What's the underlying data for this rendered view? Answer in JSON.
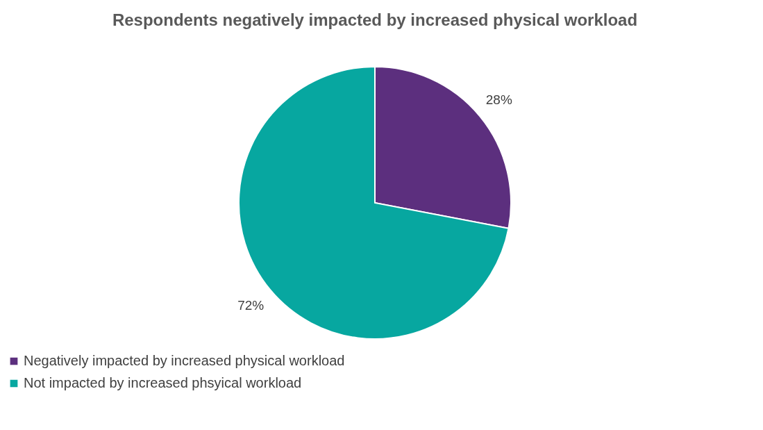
{
  "chart_data": {
    "type": "pie",
    "title": "Respondents negatively impacted by increased physical workload",
    "categories": [
      "Negatively impacted by increased physical workload",
      "Not impacted by increased phsyical workload"
    ],
    "values": [
      28,
      72
    ],
    "colors": [
      "#5c2f7e",
      "#07a7a0"
    ],
    "value_labels": [
      "28%",
      "72%"
    ],
    "legend": "bottom"
  }
}
